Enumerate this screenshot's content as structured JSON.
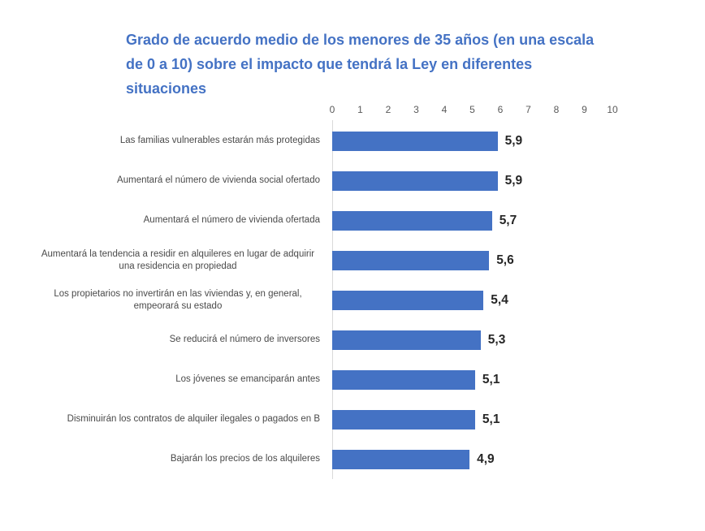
{
  "title": "Grado de acuerdo medio de los menores de 35 años (en una escala de 0 a 10) sobre el impacto que tendrá la Ley en diferentes situaciones",
  "colors": {
    "bar": "#4472C4",
    "title": "#4472C4",
    "axis_line": "#D9D9D9",
    "tick_label": "#595959",
    "category_label": "#4a4a4a",
    "value_label": "#262626"
  },
  "chart_data": {
    "type": "bar",
    "orientation": "horizontal",
    "title": "Grado de acuerdo medio de los menores de 35 años (en una escala de 0 a 10) sobre el impacto que tendrá la Ley en diferentes situaciones",
    "categories": [
      "Las familias vulnerables estarán más protegidas",
      "Aumentará el número de vivienda social ofertado",
      "Aumentará el número de vivienda ofertada",
      "Aumentará la tendencia a residir en alquileres en lugar de adquirir una residencia en propiedad",
      "Los propietarios no invertirán en las viviendas y, en general, empeorará su estado",
      "Se reducirá el número de inversores",
      "Los jóvenes se emanciparán antes",
      "Disminuirán los contratos de alquiler ilegales o pagados en B",
      "Bajarán los precios de los alquileres"
    ],
    "values": [
      5.9,
      5.9,
      5.7,
      5.6,
      5.4,
      5.3,
      5.1,
      5.1,
      4.9
    ],
    "value_labels": [
      "5,9",
      "5,9",
      "5,7",
      "5,6",
      "5,4",
      "5,3",
      "5,1",
      "5,1",
      "4,9"
    ],
    "xlabel": "",
    "ylabel": "",
    "xlim": [
      0,
      10
    ],
    "x_ticks": [
      "0",
      "1",
      "2",
      "3",
      "4",
      "5",
      "6",
      "7",
      "8",
      "9",
      "10"
    ],
    "axis_position": "top",
    "grid": false,
    "legend": false,
    "data_labels": true
  }
}
